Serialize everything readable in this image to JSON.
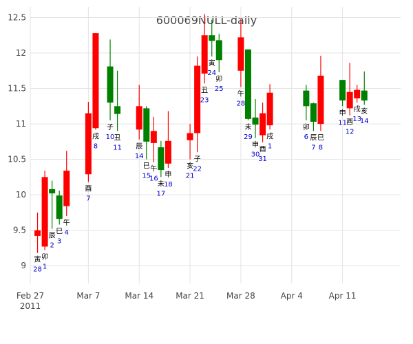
{
  "chart_data": {
    "type": "candlestick",
    "title": "600069NULL-daily",
    "colors": {
      "up": "#ff0000",
      "down": "#008000",
      "day_number": "#0000cc",
      "branch_label": "#000000"
    },
    "grid": true,
    "ylim": [
      8.75,
      12.65
    ],
    "yticks": [
      "9",
      "9.5",
      "10",
      "10.5",
      "11",
      "11.5",
      "12",
      "12.5"
    ],
    "xticks": [
      {
        "date": "2011-02-27",
        "label": "Feb 27",
        "sublabel": "2011"
      },
      {
        "date": "2011-03-07",
        "label": "Mar 7"
      },
      {
        "date": "2011-03-14",
        "label": "Mar 14"
      },
      {
        "date": "2011-03-21",
        "label": "Mar 21"
      },
      {
        "date": "2011-03-28",
        "label": "Mar 28"
      },
      {
        "date": "2011-04-04",
        "label": "Apr 4"
      },
      {
        "date": "2011-04-11",
        "label": "Apr 11"
      }
    ],
    "xrange": [
      "2011-02-27",
      "2011-04-19"
    ],
    "candles": [
      {
        "date": "2011-02-28",
        "open": 9.42,
        "high": 9.75,
        "low": 9.18,
        "close": 9.5,
        "branch": "寅",
        "day": "28"
      },
      {
        "date": "2011-03-01",
        "open": 9.27,
        "high": 10.34,
        "low": 9.22,
        "close": 10.25,
        "branch": "卯",
        "day": "1"
      },
      {
        "date": "2011-03-02",
        "open": 10.08,
        "high": 10.2,
        "low": 9.52,
        "close": 10.02,
        "branch": "辰",
        "day": "2"
      },
      {
        "date": "2011-03-03",
        "open": 9.99,
        "high": 10.06,
        "low": 9.58,
        "close": 9.66,
        "branch": "巳",
        "day": "3"
      },
      {
        "date": "2011-03-04",
        "open": 9.84,
        "high": 10.62,
        "low": 9.7,
        "close": 10.34,
        "branch": "午",
        "day": "4"
      },
      {
        "date": "2011-03-07",
        "open": 10.29,
        "high": 11.31,
        "low": 10.18,
        "close": 11.15,
        "branch": "酉",
        "day": "7"
      },
      {
        "date": "2011-03-08",
        "open": 10.94,
        "high": 12.28,
        "low": 10.92,
        "close": 12.28,
        "branch": "戌",
        "day": "8"
      },
      {
        "date": "2011-03-10",
        "open": 11.81,
        "high": 12.19,
        "low": 11.05,
        "close": 11.3,
        "branch": "子",
        "day": "10"
      },
      {
        "date": "2011-03-11",
        "open": 11.25,
        "high": 11.75,
        "low": 10.9,
        "close": 11.14,
        "branch": "丑",
        "day": "11"
      },
      {
        "date": "2011-03-14",
        "open": 10.92,
        "high": 11.55,
        "low": 10.78,
        "close": 11.25,
        "branch": "辰",
        "day": "14"
      },
      {
        "date": "2011-03-15",
        "open": 11.22,
        "high": 11.25,
        "low": 10.5,
        "close": 10.75,
        "branch": "巳",
        "day": "15"
      },
      {
        "date": "2011-03-16",
        "open": 10.73,
        "high": 11.1,
        "low": 10.46,
        "close": 10.9,
        "branch": "午",
        "day": "16"
      },
      {
        "date": "2011-03-17",
        "open": 10.67,
        "high": 10.76,
        "low": 10.25,
        "close": 10.35,
        "branch": "未",
        "day": "17"
      },
      {
        "date": "2011-03-18",
        "open": 10.44,
        "high": 11.18,
        "low": 10.38,
        "close": 10.76,
        "branch": "申",
        "day": "18"
      },
      {
        "date": "2011-03-21",
        "open": 10.77,
        "high": 11.0,
        "low": 10.5,
        "close": 10.87,
        "branch": "亥",
        "day": "21"
      },
      {
        "date": "2011-03-22",
        "open": 10.87,
        "high": 11.95,
        "low": 10.6,
        "close": 11.82,
        "branch": "子",
        "day": "22"
      },
      {
        "date": "2011-03-23",
        "open": 11.71,
        "high": 12.55,
        "low": 11.57,
        "close": 12.25,
        "branch": "丑",
        "day": "23"
      },
      {
        "date": "2011-03-24",
        "open": 12.25,
        "high": 12.47,
        "low": 11.95,
        "close": 12.17,
        "branch": "寅",
        "day": "24"
      },
      {
        "date": "2011-03-25",
        "open": 12.18,
        "high": 12.27,
        "low": 11.73,
        "close": 11.9,
        "branch": "卯",
        "day": "25"
      },
      {
        "date": "2011-03-28",
        "open": 11.75,
        "high": 12.48,
        "low": 11.52,
        "close": 12.22,
        "branch": "午",
        "day": "28"
      },
      {
        "date": "2011-03-29",
        "open": 12.05,
        "high": 12.05,
        "low": 11.05,
        "close": 11.07,
        "branch": "未",
        "day": "29"
      },
      {
        "date": "2011-03-30",
        "open": 11.09,
        "high": 11.35,
        "low": 10.8,
        "close": 10.99,
        "branch": "申",
        "day": "30"
      },
      {
        "date": "2011-03-31",
        "open": 10.84,
        "high": 11.3,
        "low": 10.74,
        "close": 11.15,
        "branch": "酉",
        "day": "31"
      },
      {
        "date": "2011-04-01",
        "open": 10.98,
        "high": 11.56,
        "low": 10.92,
        "close": 11.44,
        "branch": "戌",
        "day": "1"
      },
      {
        "date": "2011-04-06",
        "open": 11.47,
        "high": 11.55,
        "low": 11.05,
        "close": 11.25,
        "branch": "卯",
        "day": "6"
      },
      {
        "date": "2011-04-07",
        "open": 11.29,
        "high": 11.3,
        "low": 10.9,
        "close": 11.03,
        "branch": "辰",
        "day": "7"
      },
      {
        "date": "2011-04-08",
        "open": 11.0,
        "high": 11.96,
        "low": 10.9,
        "close": 11.68,
        "branch": "巳",
        "day": "8"
      },
      {
        "date": "2011-04-11",
        "open": 11.62,
        "high": 11.62,
        "low": 11.25,
        "close": 11.33,
        "branch": "申",
        "day": "11"
      },
      {
        "date": "2011-04-12",
        "open": 11.22,
        "high": 11.86,
        "low": 11.12,
        "close": 11.45,
        "branch": "酉",
        "day": "12"
      },
      {
        "date": "2011-04-13",
        "open": 11.36,
        "high": 11.55,
        "low": 11.3,
        "close": 11.48,
        "branch": "戌",
        "day": "13"
      },
      {
        "date": "2011-04-14",
        "open": 11.47,
        "high": 11.74,
        "low": 11.27,
        "close": 11.33,
        "branch": "亥",
        "day": "14"
      }
    ]
  }
}
